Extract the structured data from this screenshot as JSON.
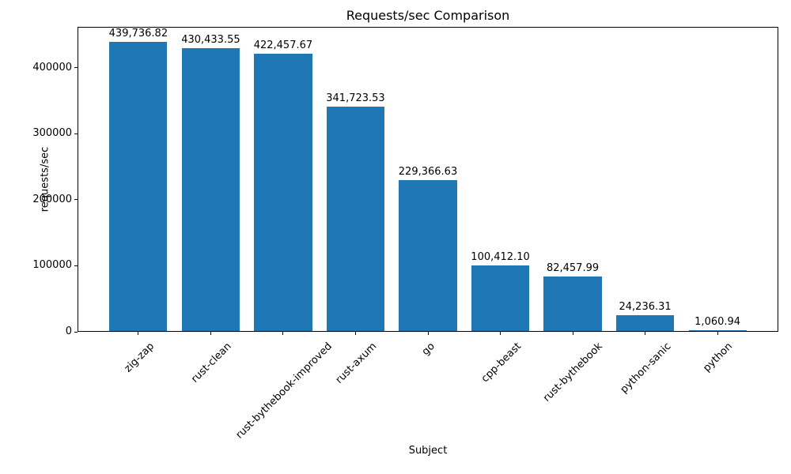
{
  "chart_data": {
    "type": "bar",
    "title": "Requests/sec Comparison",
    "xlabel": "Subject",
    "ylabel": "requests/sec",
    "categories": [
      "zig-zap",
      "rust-clean",
      "rust-bythebook-improved",
      "rust-axum",
      "go",
      "cpp-beast",
      "rust-bythebook",
      "python-sanic",
      "python"
    ],
    "values": [
      439736.82,
      430433.55,
      422457.67,
      341723.53,
      229366.63,
      100412.1,
      82457.99,
      24236.31,
      1060.94
    ],
    "bar_labels": [
      "439,736.82",
      "430,433.55",
      "422,457.67",
      "341,723.53",
      "229,366.63",
      "100,412.10",
      "82,457.99",
      "24,236.31",
      "1,060.94"
    ],
    "yticks": [
      0,
      100000,
      200000,
      300000,
      400000
    ],
    "ytick_labels": [
      "0",
      "100000",
      "200000",
      "300000",
      "400000"
    ],
    "ylim": [
      0,
      461723.66
    ],
    "xlim_units": [
      -0.84,
      8.84
    ],
    "bar_width_units": 0.8,
    "bar_color": "#1f77b4",
    "background_color": "#ffffff",
    "spine_color": "#000000",
    "grid": false,
    "legend": "none"
  }
}
